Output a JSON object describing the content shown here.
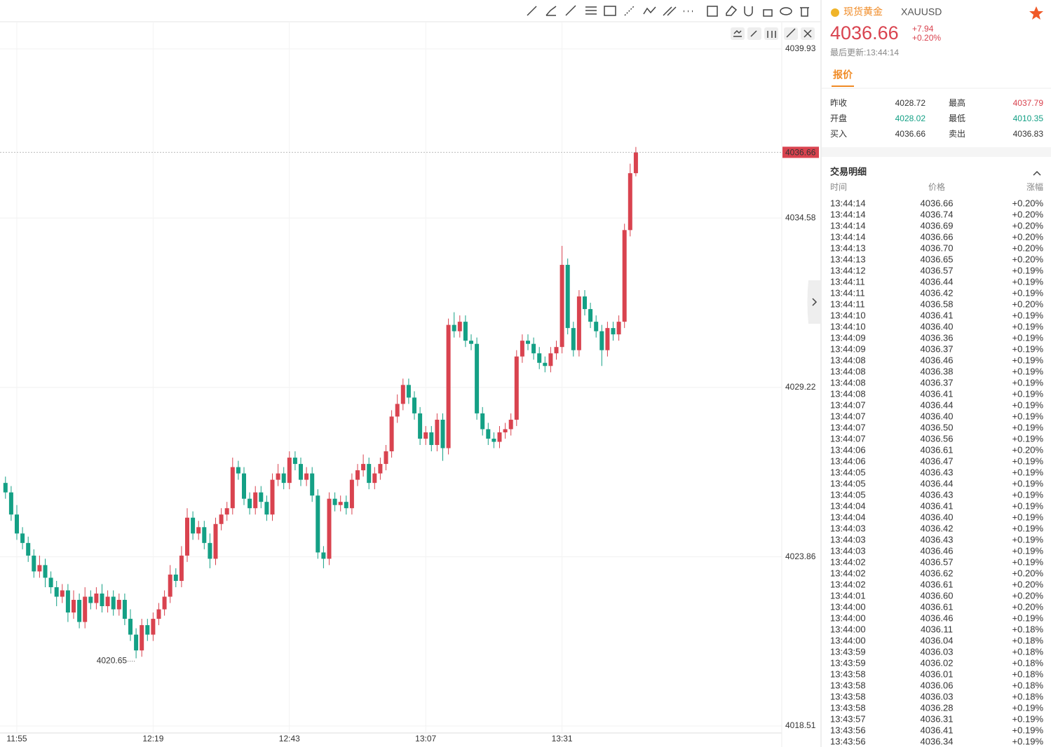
{
  "chart_data": {
    "type": "candlestick",
    "categories": [
      null,
      null,
      "11:55",
      null,
      null,
      null,
      null,
      null,
      null,
      null,
      null,
      null,
      null,
      null,
      null,
      null,
      null,
      null,
      null,
      null,
      null,
      null,
      null,
      null,
      null,
      null,
      "12:19",
      null,
      null,
      null,
      null,
      null,
      null,
      null,
      null,
      null,
      null,
      null,
      null,
      null,
      null,
      null,
      null,
      null,
      null,
      null,
      null,
      null,
      null,
      null,
      "12:43",
      null,
      null,
      null,
      null,
      null,
      null,
      null,
      null,
      null,
      null,
      null,
      null,
      null,
      null,
      null,
      null,
      null,
      null,
      null,
      null,
      null,
      null,
      null,
      "13:07",
      null,
      null,
      null,
      null,
      null,
      null,
      null,
      null,
      null,
      null,
      null,
      null,
      null,
      null,
      null,
      null,
      null,
      null,
      null,
      null,
      null,
      null,
      null,
      "13:31",
      null,
      null,
      null,
      null,
      null,
      null,
      null,
      null,
      null,
      null,
      null,
      null,
      null
    ],
    "open": [
      4026.2,
      4025.9,
      4025.2,
      4024.6,
      4024.3,
      4023.9,
      4023.4,
      4023.6,
      4023.2,
      4022.9,
      4022.6,
      4022.8,
      4022.1,
      4022.5,
      4021.8,
      4022.6,
      4022.4,
      4022.7,
      4022.3,
      4022.6,
      4022.2,
      4022.5,
      4021.9,
      4021.4,
      4020.9,
      4021.7,
      4021.4,
      4021.9,
      4022.2,
      4022.6,
      4023.3,
      4023.1,
      4023.9,
      4025.1,
      4024.6,
      4024.8,
      4024.3,
      4023.8,
      4024.9,
      4025.2,
      4025.4,
      4026.7,
      4026.5,
      4025.7,
      4025.4,
      4025.9,
      4025.6,
      4025.2,
      4026.3,
      4026.5,
      4026.2,
      4027.0,
      4026.8,
      4026.3,
      4026.5,
      4025.8,
      4024.0,
      4023.8,
      4025.7,
      4025.5,
      4025.6,
      4025.4,
      4026.3,
      4026.6,
      4026.8,
      4026.2,
      4026.5,
      4026.8,
      4027.2,
      4028.3,
      4028.7,
      4029.3,
      4028.9,
      4028.4,
      4027.6,
      4027.8,
      4027.4,
      4028.2,
      4027.3,
      4031.2,
      4031.0,
      4031.3,
      4030.7,
      4030.6,
      4028.4,
      4027.9,
      4027.6,
      4027.5,
      4027.8,
      4027.9,
      4028.2,
      4030.2,
      4030.7,
      4030.6,
      4030.3,
      4030.0,
      4029.9,
      4030.3,
      4030.5,
      4033.1,
      4031.1,
      4030.4,
      4032.1,
      4031.7,
      4031.3,
      4031.0,
      4030.4,
      4031.1,
      4030.9,
      4031.3,
      4034.2,
      4036.0
    ],
    "high": [
      4026.4,
      4026.1,
      4025.5,
      4024.8,
      4024.5,
      4024.1,
      4023.9,
      4023.8,
      4023.4,
      4023.1,
      4023.0,
      4023.0,
      4022.8,
      4022.7,
      4022.9,
      4022.8,
      4022.9,
      4023.0,
      4022.8,
      4022.8,
      4022.7,
      4022.7,
      4022.2,
      4021.6,
      4021.9,
      4021.9,
      4022.1,
      4022.4,
      4022.8,
      4023.6,
      4023.5,
      4024.2,
      4025.4,
      4025.3,
      4025.0,
      4025.0,
      4024.6,
      4025.1,
      4025.4,
      4025.6,
      4027.0,
      4026.9,
      4026.7,
      4025.9,
      4026.1,
      4026.1,
      4025.8,
      4026.5,
      4026.8,
      4026.7,
      4027.2,
      4027.2,
      4027.0,
      4026.7,
      4026.7,
      4026.0,
      4024.2,
      4025.9,
      4025.9,
      4025.8,
      4025.8,
      4026.5,
      4026.8,
      4027.1,
      4027.0,
      4026.7,
      4027.0,
      4027.4,
      4028.5,
      4029.0,
      4029.5,
      4029.5,
      4029.1,
      4028.6,
      4028.0,
      4028.0,
      4028.4,
      4028.4,
      4031.4,
      4031.6,
      4031.5,
      4031.5,
      4030.9,
      4030.8,
      4028.6,
      4028.1,
      4027.8,
      4028.0,
      4028.1,
      4028.4,
      4030.4,
      4030.9,
      4030.9,
      4030.8,
      4030.5,
      4030.2,
      4030.5,
      4030.7,
      4033.7,
      4033.3,
      4031.3,
      4032.3,
      4032.3,
      4031.9,
      4031.5,
      4031.2,
      4031.3,
      4031.3,
      4031.5,
      4034.4,
      4036.3,
      4036.83
    ],
    "low": [
      4025.7,
      4025.0,
      4024.4,
      4024.1,
      4023.7,
      4023.2,
      4023.2,
      4022.9,
      4022.7,
      4022.3,
      4022.4,
      4021.8,
      4021.9,
      4021.6,
      4021.6,
      4022.2,
      4022.2,
      4022.1,
      4022.1,
      4022.0,
      4022.0,
      4021.7,
      4021.2,
      4020.65,
      4020.7,
      4021.2,
      4021.2,
      4021.7,
      4022.0,
      4022.4,
      4022.9,
      4022.9,
      4023.7,
      4024.4,
      4024.4,
      4024.1,
      4023.5,
      4023.6,
      4024.7,
      4025.0,
      4025.2,
      4026.3,
      4025.5,
      4025.2,
      4025.2,
      4025.4,
      4025.0,
      4025.0,
      4026.1,
      4026.0,
      4026.0,
      4026.6,
      4026.1,
      4026.1,
      4025.6,
      4023.8,
      4023.5,
      4023.6,
      4025.3,
      4025.3,
      4025.2,
      4025.2,
      4026.1,
      4026.4,
      4026.0,
      4026.0,
      4026.3,
      4026.6,
      4027.0,
      4028.1,
      4028.5,
      4028.7,
      4028.2,
      4027.4,
      4027.4,
      4027.2,
      4027.2,
      4026.9,
      4027.1,
      4030.8,
      4030.8,
      4030.5,
      4030.4,
      4028.2,
      4027.7,
      4027.4,
      4027.3,
      4027.3,
      4027.6,
      4027.7,
      4028.0,
      4030.0,
      4030.4,
      4030.1,
      4029.8,
      4029.7,
      4029.7,
      4030.1,
      4030.3,
      4030.9,
      4030.2,
      4030.2,
      4031.5,
      4031.1,
      4030.8,
      4029.9,
      4030.2,
      4030.7,
      4030.7,
      4031.1,
      4034.0,
      4035.9
    ],
    "close": [
      4025.9,
      4025.2,
      4024.6,
      4024.3,
      4023.9,
      4023.4,
      4023.6,
      4023.2,
      4022.9,
      4022.6,
      4022.8,
      4022.1,
      4022.5,
      4021.8,
      4022.6,
      4022.4,
      4022.7,
      4022.3,
      4022.6,
      4022.2,
      4022.5,
      4021.9,
      4021.4,
      4020.9,
      4021.7,
      4021.4,
      4021.9,
      4022.2,
      4022.6,
      4023.3,
      4023.1,
      4023.9,
      4025.1,
      4024.6,
      4024.8,
      4024.3,
      4023.8,
      4024.9,
      4025.2,
      4025.4,
      4026.7,
      4026.5,
      4025.7,
      4025.4,
      4025.9,
      4025.6,
      4025.2,
      4026.3,
      4026.5,
      4026.2,
      4027.0,
      4026.8,
      4026.3,
      4026.5,
      4025.8,
      4024.0,
      4023.8,
      4025.7,
      4025.5,
      4025.6,
      4025.4,
      4026.3,
      4026.6,
      4026.8,
      4026.2,
      4026.5,
      4026.8,
      4027.2,
      4028.3,
      4028.7,
      4029.3,
      4028.9,
      4028.4,
      4027.6,
      4027.8,
      4027.4,
      4028.2,
      4027.3,
      4031.2,
      4031.0,
      4031.3,
      4030.7,
      4030.6,
      4028.4,
      4027.9,
      4027.6,
      4027.5,
      4027.8,
      4027.9,
      4028.2,
      4030.2,
      4030.7,
      4030.6,
      4030.3,
      4030.0,
      4029.9,
      4030.3,
      4030.5,
      4033.1,
      4031.1,
      4030.4,
      4032.1,
      4031.7,
      4031.3,
      4031.0,
      4030.4,
      4031.1,
      4030.9,
      4031.3,
      4034.2,
      4036.0,
      4036.66
    ],
    "up_color": "#d9434f",
    "down_color": "#14a085",
    "ylim": [
      4018.31,
      4040.77
    ],
    "yticks": [
      4039.93,
      4034.58,
      4029.22,
      4023.86,
      4018.51
    ],
    "grid": true
  },
  "header": {
    "name": "现货黄金",
    "symbol": "XAUUSD",
    "price": "4036.66",
    "change": "+7.94",
    "change_pct": "+0.20%",
    "updated": "最后更新:13:44:14",
    "tab": "报价"
  },
  "quote": [
    {
      "label": "昨收",
      "value": 4028.72
    },
    {
      "label": "最高",
      "value": 4037.79
    },
    {
      "label": "开盘",
      "value": 4028.02
    },
    {
      "label": "最低",
      "value": 4010.35
    },
    {
      "label": "买入",
      "value": 4036.66
    },
    {
      "label": "卖出",
      "value": 4036.83
    }
  ],
  "trades": {
    "title": "交易明细",
    "columns": [
      "时间",
      "价格",
      "涨幅"
    ],
    "rows": [
      [
        "13:44:14",
        "4036.66",
        "+0.20%"
      ],
      [
        "13:44:14",
        "4036.74",
        "+0.20%"
      ],
      [
        "13:44:14",
        "4036.69",
        "+0.20%"
      ],
      [
        "13:44:14",
        "4036.66",
        "+0.20%"
      ],
      [
        "13:44:13",
        "4036.70",
        "+0.20%"
      ],
      [
        "13:44:13",
        "4036.65",
        "+0.20%"
      ],
      [
        "13:44:12",
        "4036.57",
        "+0.19%"
      ],
      [
        "13:44:11",
        "4036.44",
        "+0.19%"
      ],
      [
        "13:44:11",
        "4036.42",
        "+0.19%"
      ],
      [
        "13:44:11",
        "4036.58",
        "+0.20%"
      ],
      [
        "13:44:10",
        "4036.41",
        "+0.19%"
      ],
      [
        "13:44:10",
        "4036.40",
        "+0.19%"
      ],
      [
        "13:44:09",
        "4036.36",
        "+0.19%"
      ],
      [
        "13:44:09",
        "4036.37",
        "+0.19%"
      ],
      [
        "13:44:08",
        "4036.46",
        "+0.19%"
      ],
      [
        "13:44:08",
        "4036.38",
        "+0.19%"
      ],
      [
        "13:44:08",
        "4036.37",
        "+0.19%"
      ],
      [
        "13:44:08",
        "4036.41",
        "+0.19%"
      ],
      [
        "13:44:07",
        "4036.44",
        "+0.19%"
      ],
      [
        "13:44:07",
        "4036.40",
        "+0.19%"
      ],
      [
        "13:44:07",
        "4036.50",
        "+0.19%"
      ],
      [
        "13:44:07",
        "4036.56",
        "+0.19%"
      ],
      [
        "13:44:06",
        "4036.61",
        "+0.20%"
      ],
      [
        "13:44:06",
        "4036.47",
        "+0.19%"
      ],
      [
        "13:44:05",
        "4036.43",
        "+0.19%"
      ],
      [
        "13:44:05",
        "4036.44",
        "+0.19%"
      ],
      [
        "13:44:05",
        "4036.43",
        "+0.19%"
      ],
      [
        "13:44:04",
        "4036.41",
        "+0.19%"
      ],
      [
        "13:44:04",
        "4036.40",
        "+0.19%"
      ],
      [
        "13:44:03",
        "4036.42",
        "+0.19%"
      ],
      [
        "13:44:03",
        "4036.43",
        "+0.19%"
      ],
      [
        "13:44:03",
        "4036.46",
        "+0.19%"
      ],
      [
        "13:44:02",
        "4036.57",
        "+0.19%"
      ],
      [
        "13:44:02",
        "4036.62",
        "+0.20%"
      ],
      [
        "13:44:02",
        "4036.61",
        "+0.20%"
      ],
      [
        "13:44:01",
        "4036.60",
        "+0.20%"
      ],
      [
        "13:44:00",
        "4036.61",
        "+0.20%"
      ],
      [
        "13:44:00",
        "4036.46",
        "+0.19%"
      ],
      [
        "13:44:00",
        "4036.11",
        "+0.18%"
      ],
      [
        "13:44:00",
        "4036.04",
        "+0.18%"
      ],
      [
        "13:43:59",
        "4036.03",
        "+0.18%"
      ],
      [
        "13:43:59",
        "4036.02",
        "+0.18%"
      ],
      [
        "13:43:58",
        "4036.01",
        "+0.18%"
      ],
      [
        "13:43:58",
        "4036.06",
        "+0.18%"
      ],
      [
        "13:43:58",
        "4036.03",
        "+0.18%"
      ],
      [
        "13:43:58",
        "4036.28",
        "+0.19%"
      ],
      [
        "13:43:57",
        "4036.31",
        "+0.19%"
      ],
      [
        "13:43:56",
        "4036.41",
        "+0.19%"
      ],
      [
        "13:43:56",
        "4036.34",
        "+0.19%"
      ]
    ]
  }
}
